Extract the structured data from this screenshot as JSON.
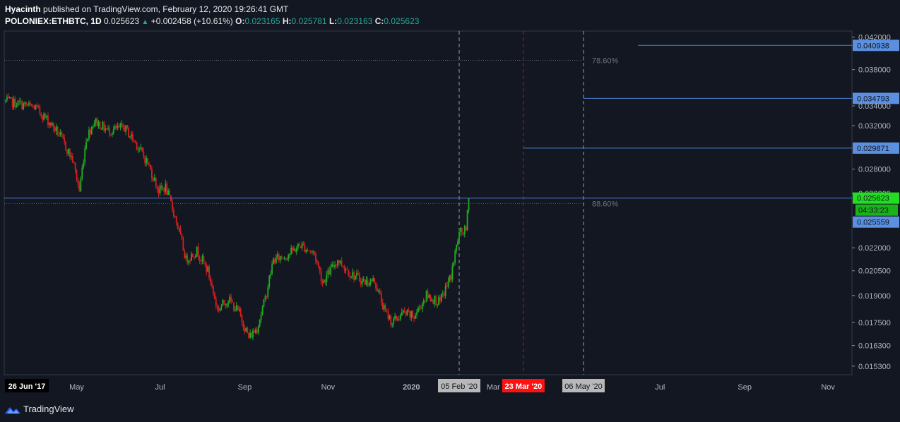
{
  "header": {
    "author": "Hyacinth",
    "published_text": "published on TradingView.com, February 12, 2020 19:26:41 GMT",
    "symbol": "POLONIEX:ETHBTC, 1D",
    "last": "0.025623",
    "change": "+0.002458 (+10.61%)",
    "o_label": "O:",
    "o_val": "0.023165",
    "h_label": "H:",
    "h_val": "0.025781",
    "l_label": "L:",
    "l_val": "0.023163",
    "c_label": "C:",
    "c_val": "0.025623"
  },
  "footer": {
    "brand": "TradingView"
  },
  "colors": {
    "background": "#131722",
    "up": "#26a69a",
    "candle_up": "#22ab22",
    "candle_down": "#d61f1f",
    "line_blue": "#2962ff",
    "label_blue": "#5b8fe0",
    "price_green": "#22dd22",
    "event_red": "#ff1111"
  },
  "chart_data": {
    "type": "candlestick",
    "title": "POLONIEX:ETHBTC, 1D",
    "ylim": [
      0.015,
      0.0425
    ],
    "y_scale": "log",
    "y_ticks": [
      "0.042000",
      "0.038000",
      "0.034000",
      "0.032000",
      "0.028000",
      "0.026000",
      "0.022000",
      "0.020500",
      "0.019000",
      "0.017500",
      "0.016300",
      "0.015300"
    ],
    "x_ticks": [
      "26 Jun '17",
      "May",
      "Jul",
      "Sep",
      "Nov",
      "2020",
      "05 Feb '20",
      "Mar",
      "23 Mar '20",
      "06 May '20",
      "Jul",
      "Sep",
      "Nov"
    ],
    "close_series": [
      {
        "date": "2019-03-10",
        "close": 0.0345
      },
      {
        "date": "2019-03-20",
        "close": 0.0342
      },
      {
        "date": "2019-04-01",
        "close": 0.0338
      },
      {
        "date": "2019-04-10",
        "close": 0.0325
      },
      {
        "date": "2019-04-18",
        "close": 0.0312
      },
      {
        "date": "2019-04-28",
        "close": 0.0288
      },
      {
        "date": "2019-05-03",
        "close": 0.0262
      },
      {
        "date": "2019-05-08",
        "close": 0.0308
      },
      {
        "date": "2019-05-14",
        "close": 0.0325
      },
      {
        "date": "2019-05-24",
        "close": 0.0315
      },
      {
        "date": "2019-06-05",
        "close": 0.0318
      },
      {
        "date": "2019-06-14",
        "close": 0.0302
      },
      {
        "date": "2019-06-22",
        "close": 0.0285
      },
      {
        "date": "2019-06-30",
        "close": 0.0262
      },
      {
        "date": "2019-07-05",
        "close": 0.0265
      },
      {
        "date": "2019-07-12",
        "close": 0.0242
      },
      {
        "date": "2019-07-20",
        "close": 0.0212
      },
      {
        "date": "2019-07-28",
        "close": 0.0218
      },
      {
        "date": "2019-08-05",
        "close": 0.0205
      },
      {
        "date": "2019-08-12",
        "close": 0.0182
      },
      {
        "date": "2019-08-20",
        "close": 0.0188
      },
      {
        "date": "2019-08-28",
        "close": 0.018
      },
      {
        "date": "2019-09-04",
        "close": 0.0167
      },
      {
        "date": "2019-09-10",
        "close": 0.0172
      },
      {
        "date": "2019-09-16",
        "close": 0.0188
      },
      {
        "date": "2019-09-22",
        "close": 0.0212
      },
      {
        "date": "2019-10-02",
        "close": 0.0215
      },
      {
        "date": "2019-10-12",
        "close": 0.0222
      },
      {
        "date": "2019-10-22",
        "close": 0.0216
      },
      {
        "date": "2019-10-28",
        "close": 0.0198
      },
      {
        "date": "2019-11-08",
        "close": 0.0212
      },
      {
        "date": "2019-11-18",
        "close": 0.0203
      },
      {
        "date": "2019-11-28",
        "close": 0.0198
      },
      {
        "date": "2019-12-05",
        "close": 0.0199
      },
      {
        "date": "2019-12-12",
        "close": 0.0182
      },
      {
        "date": "2019-12-18",
        "close": 0.0175
      },
      {
        "date": "2019-12-26",
        "close": 0.018
      },
      {
        "date": "2020-01-03",
        "close": 0.0178
      },
      {
        "date": "2020-01-12",
        "close": 0.019
      },
      {
        "date": "2020-01-22",
        "close": 0.0186
      },
      {
        "date": "2020-01-30",
        "close": 0.0202
      },
      {
        "date": "2020-02-05",
        "close": 0.023
      },
      {
        "date": "2020-02-10",
        "close": 0.0232
      },
      {
        "date": "2020-02-12",
        "close": 0.025623
      }
    ],
    "horizontal_lines": [
      {
        "price": 0.040938,
        "label": "0.040938",
        "from_date": "2020-06-15"
      },
      {
        "price": 0.034793,
        "label": "0.034793",
        "from_date": "2020-05-06"
      },
      {
        "price": 0.029871,
        "label": "0.029871",
        "from_date": "2020-03-23"
      },
      {
        "price": 0.025623,
        "label": "0.025623",
        "from_date": "2019-03-01"
      }
    ],
    "fib_levels": [
      {
        "price": 0.0391,
        "label": "78.60%"
      },
      {
        "price": 0.0252,
        "label": "88.60%"
      }
    ],
    "vertical_markers": [
      {
        "date": "2020-02-05",
        "label": "05 Feb '20",
        "style": "dashed",
        "color": "#cccccc"
      },
      {
        "date": "2020-03-23",
        "label": "23 Mar '20",
        "style": "dashed",
        "color": "#ff1111"
      },
      {
        "date": "2020-05-06",
        "label": "06 May '20",
        "style": "dashed",
        "color": "#cccccc"
      }
    ],
    "price_labels": [
      {
        "text": "0.025623",
        "kind": "last-price"
      },
      {
        "text": "04:33:23",
        "kind": "countdown"
      },
      {
        "text": "0.025559",
        "kind": "line"
      }
    ]
  }
}
